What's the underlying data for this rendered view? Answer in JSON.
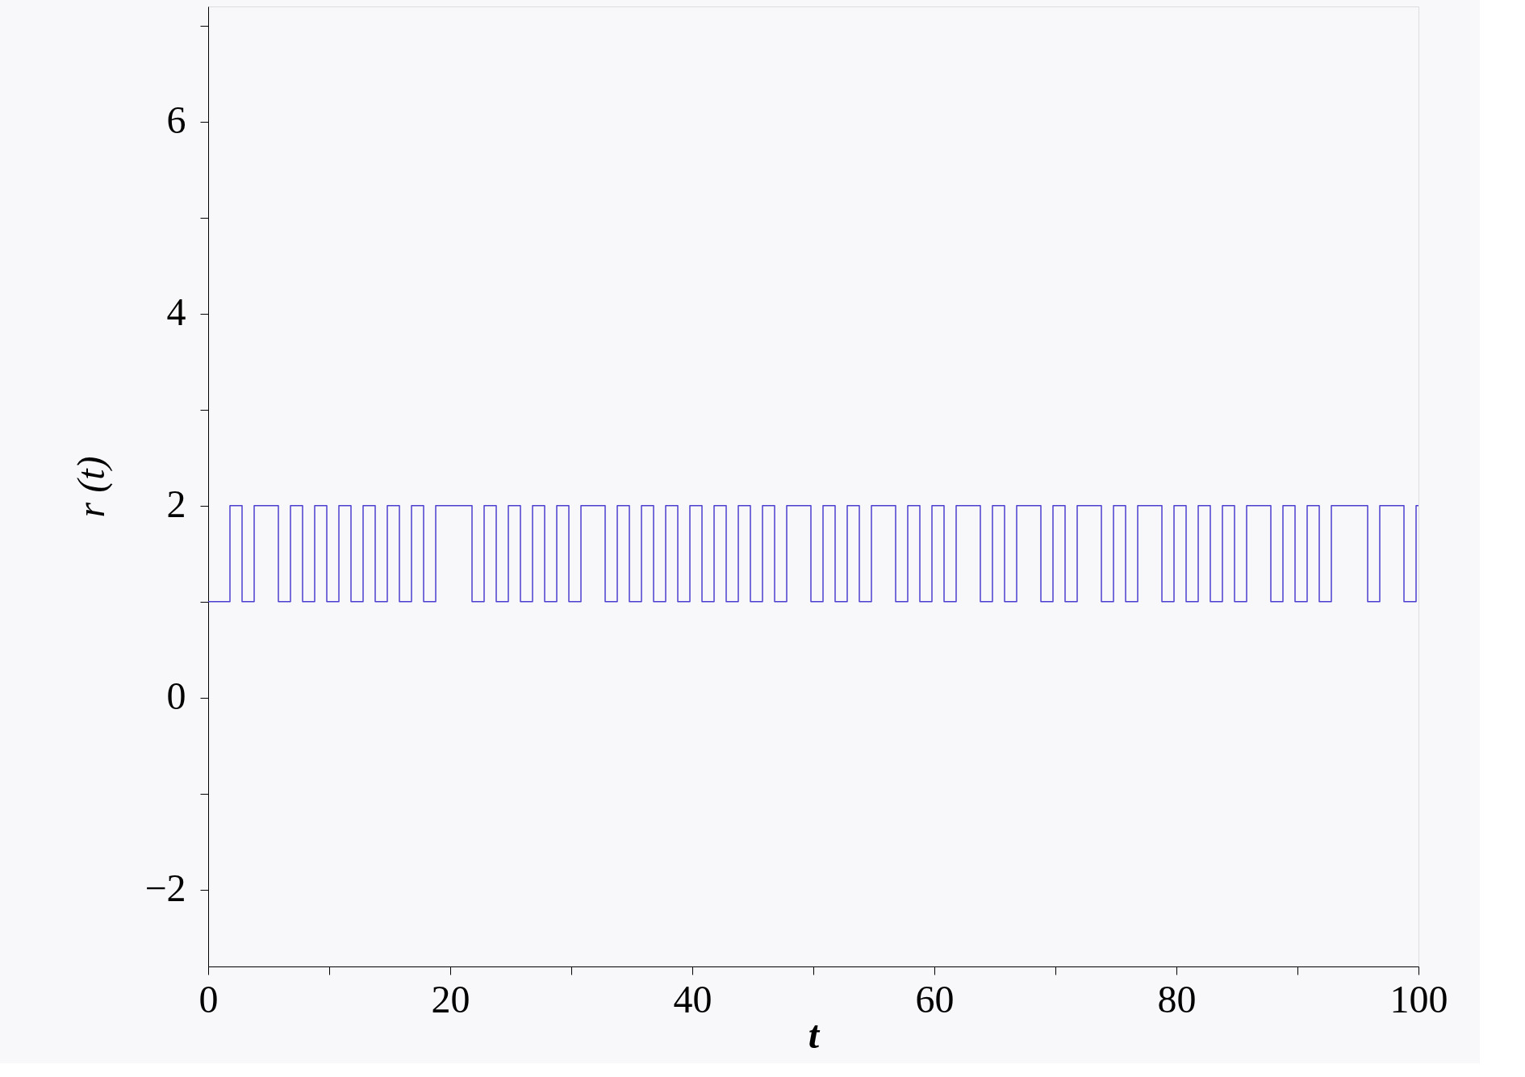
{
  "chart_data": {
    "type": "step",
    "xlabel": "t",
    "ylabel": "r (t)",
    "x": [
      0,
      1.8,
      2.8,
      3.8,
      5.8,
      6.8,
      7.8,
      8.8,
      9.8,
      10.8,
      11.8,
      12.8,
      13.8,
      14.8,
      15.8,
      16.8,
      17.8,
      18.8,
      21.8,
      22.8,
      23.8,
      24.8,
      25.8,
      26.8,
      27.8,
      28.8,
      29.8,
      30.8,
      32.8,
      33.8,
      34.8,
      35.8,
      36.8,
      37.8,
      38.8,
      39.8,
      40.8,
      41.8,
      42.8,
      43.8,
      44.8,
      45.8,
      46.8,
      47.8,
      49.8,
      50.8,
      51.8,
      52.8,
      53.8,
      54.8,
      56.8,
      57.8,
      58.8,
      59.8,
      60.8,
      61.8,
      63.8,
      64.8,
      65.8,
      66.8,
      68.8,
      69.8,
      70.8,
      71.8,
      73.8,
      74.8,
      75.8,
      76.8,
      78.8,
      79.8,
      80.8,
      81.8,
      82.8,
      83.8,
      84.8,
      85.8,
      87.8,
      88.8,
      89.8,
      90.8,
      91.8,
      92.8,
      95.8,
      96.8,
      98.8,
      99.8,
      100
    ],
    "series": [
      {
        "color": "#4b3fcf",
        "values": [
          1,
          2,
          1,
          2,
          1,
          2,
          1,
          2,
          1,
          2,
          1,
          2,
          1,
          2,
          1,
          2,
          1,
          2,
          1,
          2,
          1,
          2,
          1,
          2,
          1,
          2,
          1,
          2,
          1,
          2,
          1,
          2,
          1,
          2,
          1,
          2,
          1,
          2,
          1,
          2,
          1,
          2,
          1,
          2,
          1,
          2,
          1,
          2,
          1,
          2,
          1,
          2,
          1,
          2,
          1,
          2,
          1,
          2,
          1,
          2,
          1,
          2,
          1,
          2,
          1,
          2,
          1,
          2,
          1,
          2,
          1,
          2,
          1,
          2,
          1,
          2,
          1,
          2,
          1,
          2,
          1,
          2,
          1,
          2,
          1,
          2,
          2
        ]
      }
    ],
    "xlim": [
      0,
      100
    ],
    "xticks": [
      0,
      {
        "value": 10,
        "label": null
      },
      20,
      {
        "value": 30,
        "label": null
      },
      40,
      {
        "value": 50,
        "label": null
      },
      60,
      {
        "value": 70,
        "label": null
      },
      80,
      {
        "value": 90,
        "label": null
      },
      100
    ],
    "ylim": [
      -2.8,
      7.2
    ],
    "yticks": [
      {
        "value": -2,
        "label": "−2"
      },
      {
        "value": -1,
        "label": null
      },
      0,
      {
        "value": 1,
        "label": null
      },
      2,
      {
        "value": 3,
        "label": null
      },
      4,
      {
        "value": 5,
        "label": null
      },
      6,
      {
        "value": 7,
        "label": null
      }
    ],
    "grid": false,
    "marker": "none",
    "line_style": "solid"
  }
}
